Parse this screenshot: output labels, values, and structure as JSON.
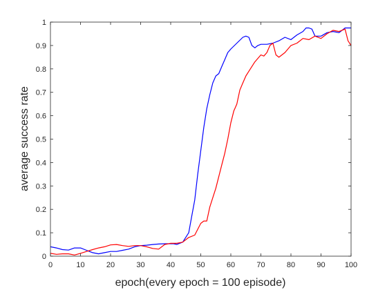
{
  "chart_data": {
    "type": "line",
    "title": "",
    "xlabel": "epoch(every epoch = 100 episode)",
    "ylabel": "average success rate",
    "xlim": [
      0,
      100
    ],
    "ylim": [
      0,
      1
    ],
    "xticks": [
      0,
      10,
      20,
      30,
      40,
      50,
      60,
      70,
      80,
      90,
      100
    ],
    "yticks": [
      0,
      0.1,
      0.2,
      0.3,
      0.4,
      0.5,
      0.6,
      0.7,
      0.8,
      0.9,
      1
    ],
    "xtick_labels": [
      "0",
      "10",
      "20",
      "30",
      "40",
      "50",
      "60",
      "70",
      "80",
      "90",
      "100"
    ],
    "ytick_labels": [
      "0",
      "0.1",
      "0.2",
      "0.3",
      "0.4",
      "0.5",
      "0.6",
      "0.7",
      "0.8",
      "0.9",
      "1"
    ],
    "grid": false,
    "legend": "none",
    "series": [
      {
        "color": "#0000ff",
        "x": [
          0,
          2,
          4,
          6,
          8,
          10,
          12,
          14,
          16,
          18,
          20,
          22,
          24,
          26,
          28,
          30,
          32,
          34,
          36,
          38,
          40,
          41,
          42,
          44,
          46,
          47,
          48,
          49,
          50,
          51,
          52,
          53,
          54,
          55,
          56,
          57,
          58,
          59,
          60,
          62,
          64,
          65,
          66,
          67,
          68,
          69,
          70,
          72,
          74,
          76,
          78,
          80,
          82,
          84,
          85,
          86,
          87,
          88,
          90,
          92,
          94,
          96,
          98,
          100
        ],
        "y": [
          0.04,
          0.035,
          0.028,
          0.026,
          0.035,
          0.035,
          0.025,
          0.015,
          0.01,
          0.015,
          0.02,
          0.02,
          0.025,
          0.03,
          0.04,
          0.045,
          0.047,
          0.05,
          0.052,
          0.053,
          0.053,
          0.053,
          0.05,
          0.06,
          0.1,
          0.17,
          0.24,
          0.35,
          0.45,
          0.55,
          0.63,
          0.69,
          0.74,
          0.77,
          0.78,
          0.81,
          0.84,
          0.87,
          0.885,
          0.91,
          0.935,
          0.94,
          0.935,
          0.9,
          0.89,
          0.9,
          0.905,
          0.905,
          0.91,
          0.92,
          0.935,
          0.925,
          0.945,
          0.96,
          0.975,
          0.975,
          0.97,
          0.94,
          0.94,
          0.955,
          0.96,
          0.955,
          0.975,
          0.975
        ]
      },
      {
        "color": "#ff0000",
        "x": [
          0,
          2,
          4,
          6,
          8,
          10,
          12,
          14,
          16,
          18,
          20,
          22,
          24,
          26,
          28,
          30,
          32,
          34,
          36,
          38,
          40,
          42,
          44,
          46,
          48,
          50,
          51,
          52,
          53,
          54,
          55,
          56,
          57,
          58,
          59,
          60,
          61,
          62,
          63,
          64,
          65,
          66,
          68,
          70,
          71,
          72,
          73,
          74,
          75,
          76,
          78,
          80,
          82,
          84,
          86,
          88,
          90,
          92,
          94,
          96,
          98,
          99,
          100
        ],
        "y": [
          0.012,
          0.008,
          0.01,
          0.01,
          0.005,
          0.012,
          0.02,
          0.028,
          0.035,
          0.04,
          0.048,
          0.05,
          0.045,
          0.042,
          0.045,
          0.045,
          0.04,
          0.033,
          0.03,
          0.05,
          0.055,
          0.055,
          0.06,
          0.08,
          0.09,
          0.14,
          0.15,
          0.15,
          0.21,
          0.25,
          0.29,
          0.34,
          0.39,
          0.44,
          0.5,
          0.57,
          0.62,
          0.65,
          0.71,
          0.74,
          0.77,
          0.79,
          0.83,
          0.86,
          0.855,
          0.87,
          0.9,
          0.91,
          0.86,
          0.85,
          0.87,
          0.9,
          0.91,
          0.93,
          0.925,
          0.94,
          0.93,
          0.95,
          0.965,
          0.96,
          0.97,
          0.92,
          0.9
        ]
      }
    ]
  }
}
